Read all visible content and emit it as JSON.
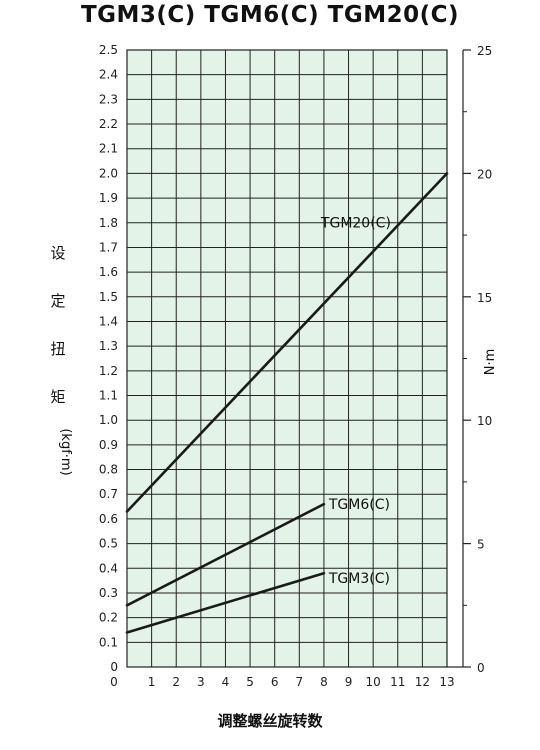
{
  "chart_data": {
    "type": "line",
    "title": "TGM3(C) TGM6(C) TGM20(C)",
    "xlabel": "调整螺丝旋转数",
    "ylabel": "设定扭矩",
    "ylabel_unit": "(kgf·m)",
    "y2label": "N·m",
    "x_ticks": [
      "1",
      "2",
      "3",
      "4",
      "5",
      "6",
      "7",
      "8",
      "9",
      "10",
      "11",
      "12",
      "13"
    ],
    "x_origin_label": "0",
    "y_ticks": [
      "0",
      "0.1",
      "0.2",
      "0.3",
      "0.4",
      "0.5",
      "0.6",
      "0.7",
      "0.8",
      "0.9",
      "1.0",
      "1.1",
      "1.2",
      "1.3",
      "1.4",
      "1.5",
      "1.6",
      "1.7",
      "1.8",
      "1.9",
      "2.0",
      "2.1",
      "2.2",
      "2.3",
      "2.4",
      "2.5"
    ],
    "y2_ticks": [
      "0",
      "5",
      "10",
      "15",
      "20",
      "25"
    ],
    "xlim": [
      0,
      13
    ],
    "ylim": [
      0,
      2.5
    ],
    "y2lim": [
      0,
      25
    ],
    "grid": true,
    "grid_color": "#cde9d3",
    "line_color": "#1a1a1a",
    "series": [
      {
        "name": "TGM20(C)",
        "x": [
          0,
          13
        ],
        "y": [
          0.63,
          2.0
        ]
      },
      {
        "name": "TGM6(C)",
        "x": [
          0,
          8
        ],
        "y": [
          0.25,
          0.66
        ]
      },
      {
        "name": "TGM3(C)",
        "x": [
          0,
          8
        ],
        "y": [
          0.14,
          0.38
        ]
      }
    ]
  }
}
